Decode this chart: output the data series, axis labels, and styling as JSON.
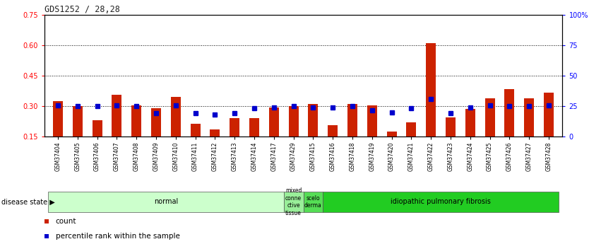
{
  "title": "GDS1252 / 28,28",
  "samples": [
    "GSM37404",
    "GSM37405",
    "GSM37406",
    "GSM37407",
    "GSM37408",
    "GSM37409",
    "GSM37410",
    "GSM37411",
    "GSM37412",
    "GSM37413",
    "GSM37414",
    "GSM37417",
    "GSM37429",
    "GSM37415",
    "GSM37416",
    "GSM37418",
    "GSM37419",
    "GSM37420",
    "GSM37421",
    "GSM37422",
    "GSM37423",
    "GSM37424",
    "GSM37425",
    "GSM37426",
    "GSM37427",
    "GSM37428"
  ],
  "bar_heights": [
    0.325,
    0.3,
    0.23,
    0.355,
    0.305,
    0.29,
    0.345,
    0.215,
    0.185,
    0.24,
    0.24,
    0.295,
    0.3,
    0.31,
    0.205,
    0.31,
    0.305,
    0.175,
    0.22,
    0.61,
    0.245,
    0.285,
    0.34,
    0.385,
    0.34,
    0.365
  ],
  "percentile_ranks": [
    0.305,
    0.3,
    0.3,
    0.305,
    0.3,
    0.265,
    0.305,
    0.265,
    0.26,
    0.265,
    0.29,
    0.295,
    0.3,
    0.295,
    0.295,
    0.3,
    0.28,
    0.27,
    0.29,
    0.335,
    0.265,
    0.295,
    0.305,
    0.3,
    0.3,
    0.305
  ],
  "ylim_left": [
    0.15,
    0.75
  ],
  "ylim_right": [
    0,
    100
  ],
  "yticks_left": [
    0.15,
    0.3,
    0.45,
    0.6,
    0.75
  ],
  "yticks_right": [
    0,
    25,
    50,
    75,
    100
  ],
  "ytick_labels_left": [
    "0.15",
    "0.30",
    "0.45",
    "0.60",
    "0.75"
  ],
  "ytick_labels_right": [
    "0",
    "25",
    "50",
    "75",
    "100%"
  ],
  "hlines": [
    0.3,
    0.45,
    0.6
  ],
  "bar_color": "#CC2200",
  "blue_color": "#0000CC",
  "bg_color": "#FFFFFF",
  "disease_groups": [
    {
      "label": "normal",
      "start": 0,
      "end": 12,
      "color": "#CCFFCC"
    },
    {
      "label": "mixed\nconne\nctive\ntissue",
      "start": 12,
      "end": 13,
      "color": "#99EE99"
    },
    {
      "label": "scelo\nderma",
      "start": 13,
      "end": 14,
      "color": "#55DD55"
    },
    {
      "label": "idiopathic pulmonary fibrosis",
      "start": 14,
      "end": 26,
      "color": "#22CC22"
    }
  ],
  "legend_items": [
    {
      "label": "count",
      "color": "#CC2200"
    },
    {
      "label": "percentile rank within the sample",
      "color": "#0000CC"
    }
  ],
  "disease_state_label": "disease state"
}
